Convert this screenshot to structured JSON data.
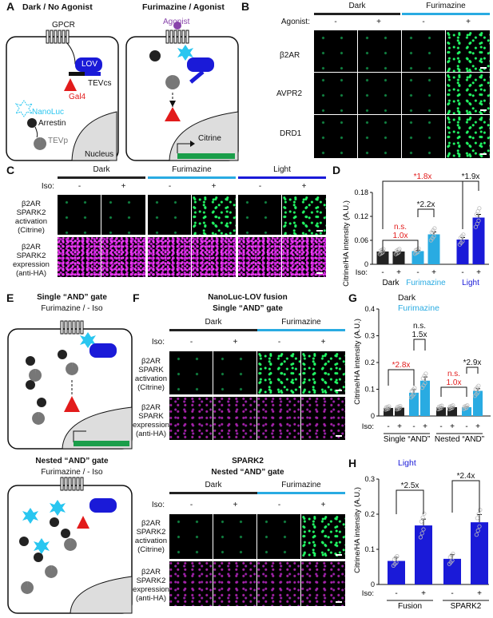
{
  "colors": {
    "dark": "#222222",
    "furimazine": "#29ABE2",
    "light": "#1A1AD8",
    "red": "#E21B1B",
    "green": "#1A9E4A",
    "nanoluc": "#29C6F0"
  },
  "panelA": {
    "label": "A",
    "left_title": "Dark / No Agonist",
    "right_title": "Furimazine / Agonist",
    "gpcr": "GPCR",
    "lov": "LOV",
    "tevcs": "TEVcs",
    "gal4": "Gal4",
    "nanoluc": "NanoLuc",
    "arrestin": "Arrestin",
    "tevp": "TEVp",
    "nucleus": "Nucleus",
    "agonist": "Agonist",
    "citrine": "Citrine"
  },
  "panelB": {
    "label": "B",
    "dark": "Dark",
    "furimazine": "Furimazine",
    "agonist_label": "Agonist:",
    "signs": [
      "-",
      "+",
      "-",
      "+"
    ],
    "rows": [
      "β2AR",
      "AVPR2",
      "DRD1"
    ]
  },
  "panelC": {
    "label": "C",
    "dark": "Dark",
    "furimazine": "Furimazine",
    "light": "Light",
    "iso": "Iso:",
    "signs": [
      "-",
      "+",
      "-",
      "+",
      "-",
      "+"
    ],
    "row1": [
      "β2AR",
      "SPARK2",
      "activation",
      "(Citrine)"
    ],
    "row2": [
      "β2AR",
      "SPARK2",
      "expression",
      "(anti-HA)"
    ]
  },
  "panelD": {
    "label": "D",
    "ylabel": "Citrine/HA intensity (A.U.)",
    "iso": "Iso:",
    "group_labels": [
      "Dark",
      "Furimazine",
      "Light"
    ],
    "annotations": {
      "ns": "n.s.",
      "ns_val": "1.0x",
      "f": "*2.2x",
      "fl": "*1.8x",
      "l": "*1.9x"
    }
  },
  "panelE": {
    "label": "E",
    "top_title": "Single “AND” gate",
    "top_sub": "Furimazine / - Iso",
    "bottom_title": "Nested “AND” gate",
    "bottom_sub": "Furimazine / - Iso"
  },
  "panelF": {
    "label": "F",
    "top_title1": "NanoLuc-LOV fusion",
    "top_title2": "Single “AND” gate",
    "bottom_title1": "SPARK2",
    "bottom_title2": "Nested “AND” gate",
    "dark": "Dark",
    "furimazine": "Furimazine",
    "iso": "Iso:",
    "signs": [
      "-",
      "+",
      "-",
      "+"
    ],
    "t_row1": [
      "β2AR",
      "SPARK",
      "activation",
      "(Citrine)"
    ],
    "t_row2": [
      "β2AR",
      "SPARK",
      "expression",
      "(anti-HA)"
    ],
    "b_row1": [
      "β2AR",
      "SPARK2",
      "activation",
      "(Citrine)"
    ],
    "b_row2": [
      "β2AR",
      "SPARK2",
      "expression",
      "(anti-HA)"
    ]
  },
  "panelG": {
    "label": "G",
    "legend_dark": "Dark",
    "legend_furimazine": "Furimazine",
    "ylabel": "Citrine/HA intensity (A.U.)",
    "iso": "Iso:",
    "groups": [
      "Single “AND”",
      "Nested “AND”"
    ],
    "annotations": {
      "a": "*2.8x",
      "b_ns": "n.s.",
      "b": "1.5x",
      "c_ns": "n.s.",
      "c": "1.0x",
      "d": "*2.9x"
    }
  },
  "panelH": {
    "label": "H",
    "legend": "Light",
    "ylabel": "Citrine/HA intensity (A.U.)",
    "iso": "Iso:",
    "groups": [
      "Fusion",
      "SPARK2"
    ],
    "annotations": {
      "a": "*2.5x",
      "b": "*2.4x"
    }
  },
  "chart_data": [
    {
      "type": "bar",
      "title": "",
      "ylabel": "Citrine/HA intensity (A.U.)",
      "ylim": [
        0,
        0.18
      ],
      "yticks": [
        "0",
        "0.06",
        "0.12",
        "0.18"
      ],
      "categories": [
        "Dark -",
        "Dark +",
        "Furimazine -",
        "Furimazine +",
        "Light -",
        "Light +"
      ],
      "values": [
        0.032,
        0.032,
        0.033,
        0.075,
        0.062,
        0.117
      ],
      "errors": [
        0.002,
        0.002,
        0.002,
        0.006,
        0.005,
        0.008
      ],
      "colors": [
        "#222222",
        "#222222",
        "#29ABE2",
        "#29ABE2",
        "#1A1AD8",
        "#1A1AD8"
      ]
    },
    {
      "type": "bar",
      "title": "",
      "ylabel": "Citrine/HA intensity (A.U.)",
      "ylim": [
        0,
        0.4
      ],
      "yticks": [
        "0",
        "0.1",
        "0.2",
        "0.3",
        "0.4"
      ],
      "categories": [
        "Single Dark -",
        "Single Dark +",
        "Single Furimazine -",
        "Single Furimazine +",
        "Nested Dark -",
        "Nested Dark +",
        "Nested Furimazine -",
        "Nested Furimazine +"
      ],
      "values": [
        0.03,
        0.031,
        0.087,
        0.132,
        0.032,
        0.033,
        0.033,
        0.094
      ],
      "errors": [
        0.002,
        0.002,
        0.012,
        0.014,
        0.002,
        0.002,
        0.002,
        0.008
      ],
      "colors": [
        "#222222",
        "#222222",
        "#29ABE2",
        "#29ABE2",
        "#222222",
        "#222222",
        "#29ABE2",
        "#29ABE2"
      ]
    },
    {
      "type": "bar",
      "title": "",
      "ylabel": "Citrine/HA intensity (A.U.)",
      "ylim": [
        0,
        0.3
      ],
      "yticks": [
        "0",
        "0.1",
        "0.2",
        "0.3"
      ],
      "categories": [
        "Fusion -",
        "Fusion +",
        "SPARK2 -",
        "SPARK2 +"
      ],
      "values": [
        0.067,
        0.168,
        0.073,
        0.177
      ],
      "errors": [
        0.01,
        0.018,
        0.012,
        0.022
      ],
      "colors": [
        "#1A1AD8",
        "#1A1AD8",
        "#1A1AD8",
        "#1A1AD8"
      ]
    }
  ]
}
